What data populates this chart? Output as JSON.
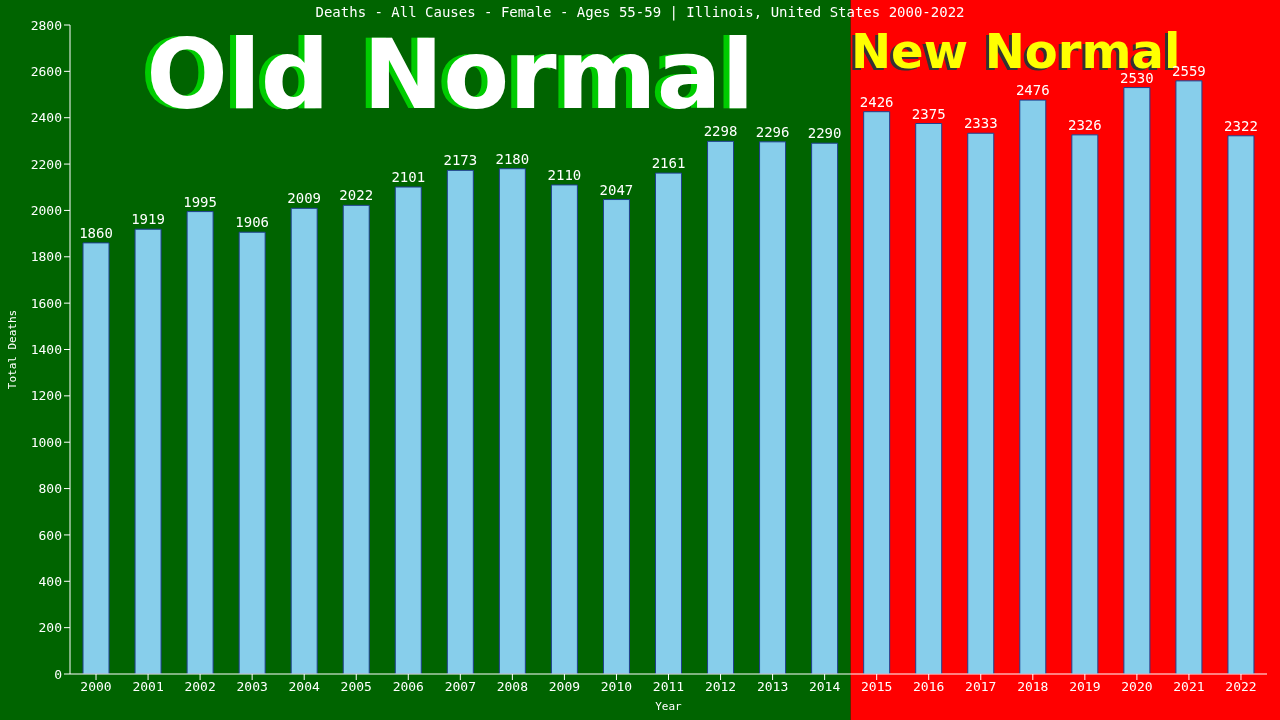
{
  "chart_data": {
    "type": "bar",
    "title": "Deaths - All Causes - Female - Ages 55-59 | Illinois, United States 2000-2022",
    "xlabel": "Year",
    "ylabel": "Total Deaths",
    "categories": [
      "2000",
      "2001",
      "2002",
      "2003",
      "2004",
      "2005",
      "2006",
      "2007",
      "2008",
      "2009",
      "2010",
      "2011",
      "2012",
      "2013",
      "2014",
      "2015",
      "2016",
      "2017",
      "2018",
      "2019",
      "2020",
      "2021",
      "2022"
    ],
    "values": [
      1860,
      1919,
      1995,
      1906,
      2009,
      2022,
      2101,
      2173,
      2180,
      2110,
      2047,
      2161,
      2298,
      2296,
      2290,
      2426,
      2375,
      2333,
      2476,
      2326,
      2530,
      2559,
      2322
    ],
    "color": "#87ceeb",
    "ylim": [
      0,
      2800
    ],
    "yticks": [
      0,
      200,
      400,
      600,
      800,
      1000,
      1200,
      1400,
      1600,
      1800,
      2000,
      2200,
      2400,
      2600,
      2800
    ],
    "data_labels": true,
    "bands": [
      {
        "axis": "x",
        "from": "2000",
        "to": "2014",
        "label": "Old Normal",
        "color": "#006400"
      },
      {
        "axis": "x",
        "from": "2015",
        "to": "2022",
        "label": "New Normal",
        "color": "#ff0000"
      }
    ]
  }
}
